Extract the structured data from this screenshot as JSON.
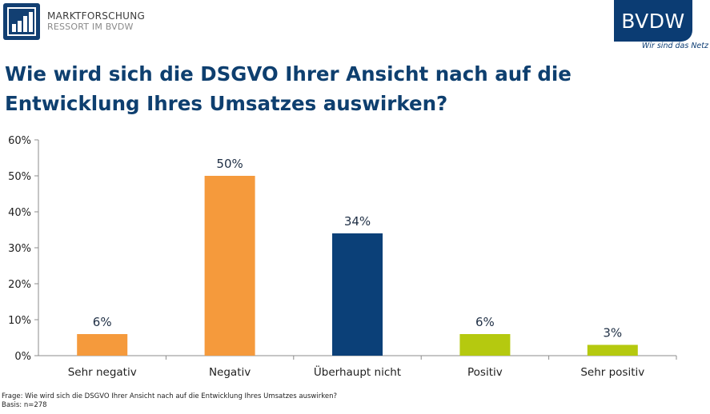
{
  "header": {
    "logo_line1": "MARKTFORSCHUNG",
    "logo_line2": "RESSORT IM BVDW",
    "brand": "BVDW",
    "brand_tagline": "Wir sind das Netz"
  },
  "title": "Wie wird sich die DSGVO Ihrer Ansicht nach auf die Entwicklung Ihres Umsatzes auswirken?",
  "chart_data": {
    "type": "bar",
    "categories": [
      "Sehr negativ",
      "Negativ",
      "Überhaupt nicht",
      "Positiv",
      "Sehr positiv"
    ],
    "values": [
      6,
      50,
      34,
      6,
      3
    ],
    "data_labels": [
      "6%",
      "50%",
      "34%",
      "6%",
      "3%"
    ],
    "bar_colors": [
      "#f59a3c",
      "#f59a3c",
      "#0b4078",
      "#b5c90f",
      "#b5c90f"
    ],
    "ylim": [
      0,
      60
    ],
    "yticks": [
      0,
      10,
      20,
      30,
      40,
      50,
      60
    ],
    "ytick_labels": [
      "0%",
      "10%",
      "20%",
      "30%",
      "40%",
      "50%",
      "60%"
    ],
    "grid": false,
    "xlabel": "",
    "ylabel": ""
  },
  "footer": {
    "question": "Frage: Wie wird sich die DSGVO Ihrer Ansicht nach auf die Entwicklung Ihres Umsatzes auswirken?",
    "basis": "Basis: n=278"
  }
}
